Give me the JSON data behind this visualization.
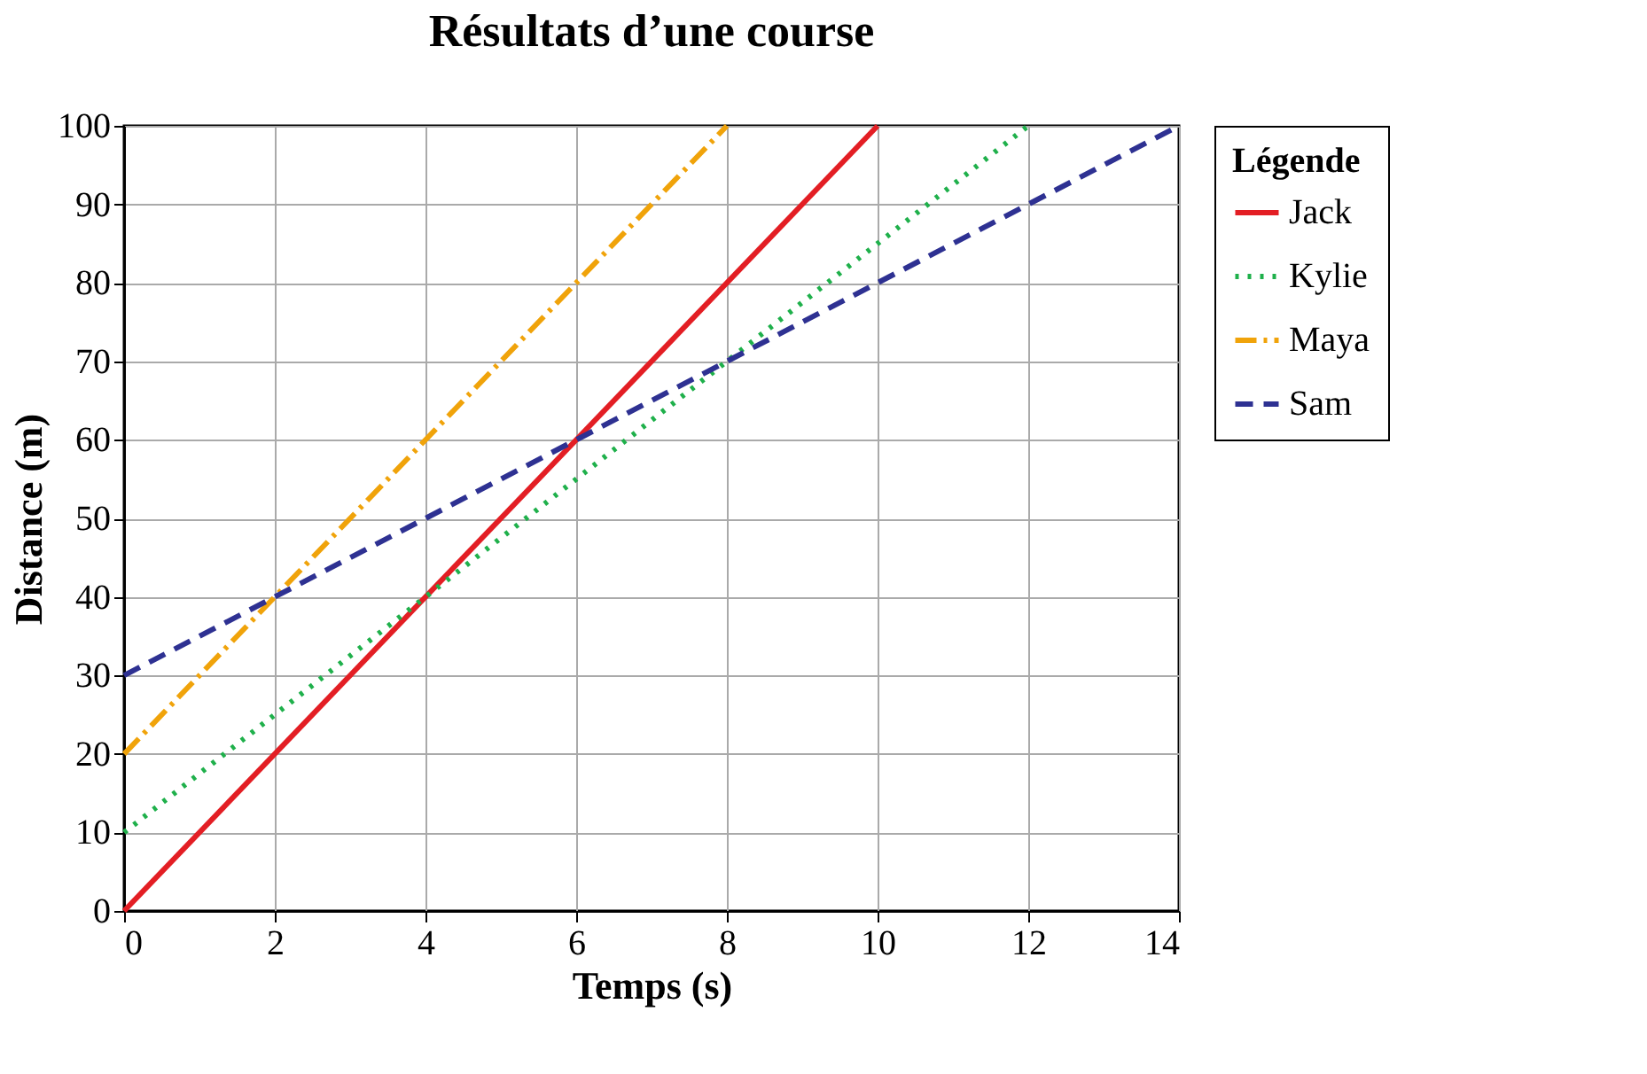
{
  "chart_data": {
    "type": "line",
    "title": "Résultats d’une course",
    "xlabel": "Temps (s)",
    "ylabel": "Distance (m)",
    "legend_title": "Légende",
    "legend": "right",
    "grid": true,
    "marker": "none",
    "xlim": [
      0,
      14
    ],
    "xticks": [
      0,
      2,
      4,
      6,
      8,
      10,
      12,
      14
    ],
    "ylim": [
      0,
      100
    ],
    "yticks": [
      0,
      10,
      20,
      30,
      40,
      50,
      60,
      70,
      80,
      90,
      100
    ],
    "series": [
      {
        "name": "Jack",
        "color": "#e31e24",
        "line_style": "solid",
        "x": [
          0,
          10
        ],
        "values": [
          0,
          100
        ]
      },
      {
        "name": "Kylie",
        "color": "#1fb04b",
        "line_style": "dotted",
        "x": [
          0,
          12
        ],
        "values": [
          10,
          100
        ]
      },
      {
        "name": "Maya",
        "color": "#f0a30a",
        "line_style": "dashdot",
        "x": [
          0,
          8
        ],
        "values": [
          20,
          100
        ]
      },
      {
        "name": "Sam",
        "color": "#2e3192",
        "line_style": "dashed",
        "x": [
          0,
          14
        ],
        "values": [
          30,
          100
        ]
      }
    ]
  }
}
